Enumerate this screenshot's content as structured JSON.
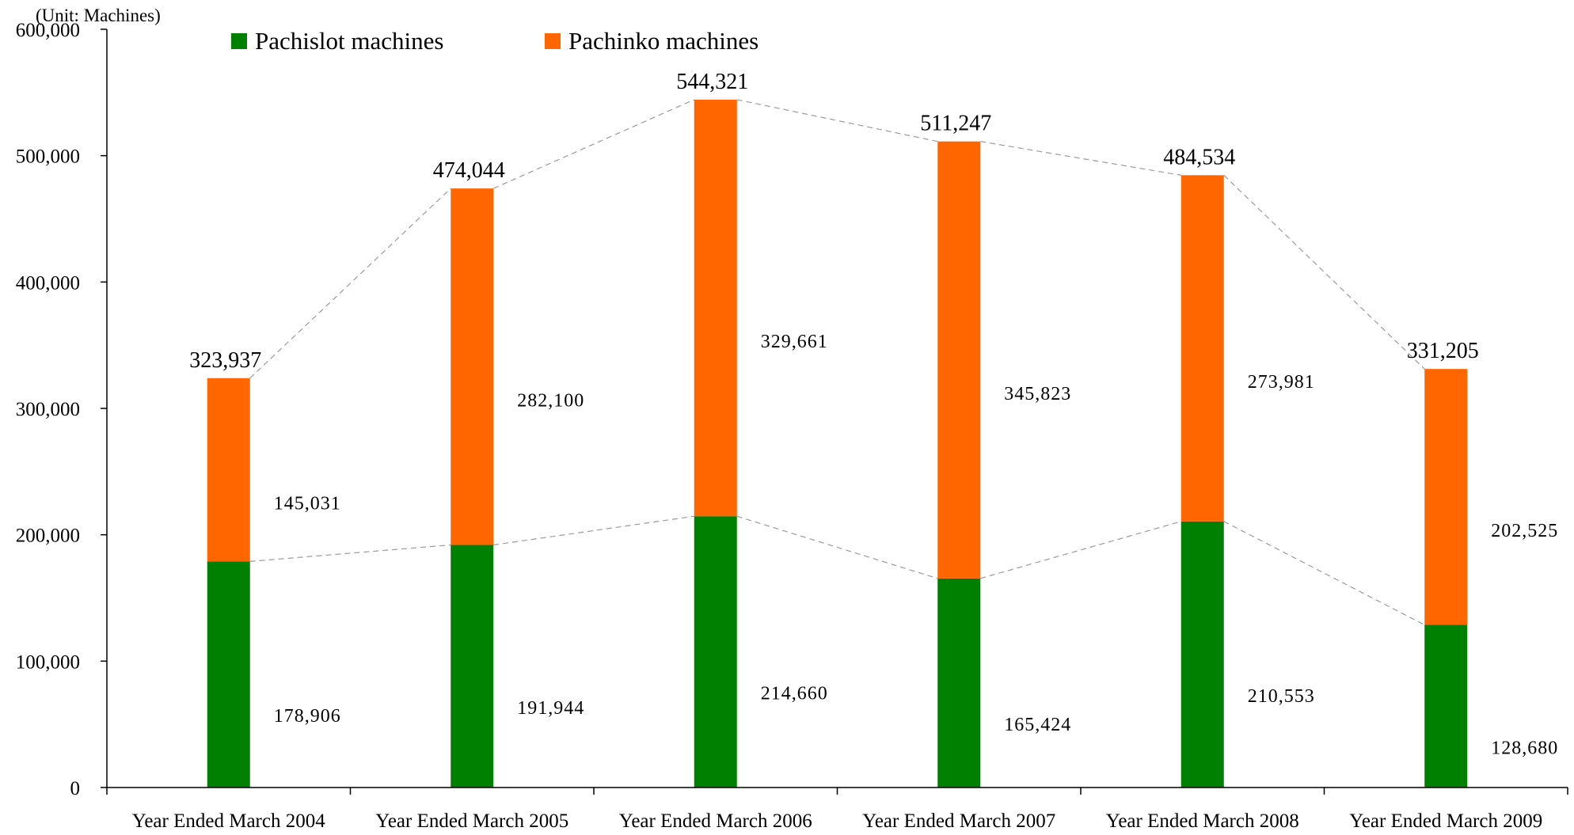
{
  "chart_data": {
    "type": "bar",
    "stacked": true,
    "unit_label": "(Unit: Machines)",
    "categories": [
      "Year Ended March 2004",
      "Year Ended March 2005",
      "Year Ended March 2006",
      "Year Ended March 2007",
      "Year Ended March 2008",
      "Year Ended March 2009"
    ],
    "series": [
      {
        "name": "Pachislot machines",
        "color": "#008000",
        "values": [
          178906,
          191944,
          214660,
          165424,
          210553,
          128680
        ],
        "labels": [
          "178,906",
          "191,944",
          "214,660",
          "165,424",
          "210,553",
          "128,680"
        ]
      },
      {
        "name": "Pachinko machines",
        "color": "#FF6600",
        "values": [
          145031,
          282100,
          329661,
          345823,
          273981,
          202525
        ],
        "labels": [
          "145,031",
          "282,100",
          "329,661",
          "345,823",
          "273,981",
          "202,525"
        ]
      }
    ],
    "totals": [
      323937,
      474044,
      544321,
      511247,
      484534,
      331205
    ],
    "total_labels": [
      "323,937",
      "474,044",
      "544,321",
      "511,247",
      "484,534",
      "331,205"
    ],
    "ylim": [
      0,
      600000
    ],
    "yticks": [
      0,
      100000,
      200000,
      300000,
      400000,
      500000,
      600000
    ],
    "ytick_labels": [
      "0",
      "100,000",
      "200,000",
      "300,000",
      "400,000",
      "500,000",
      "600,000"
    ],
    "connector_lines": "dashed",
    "grid": false,
    "legend_position": "top-left"
  }
}
